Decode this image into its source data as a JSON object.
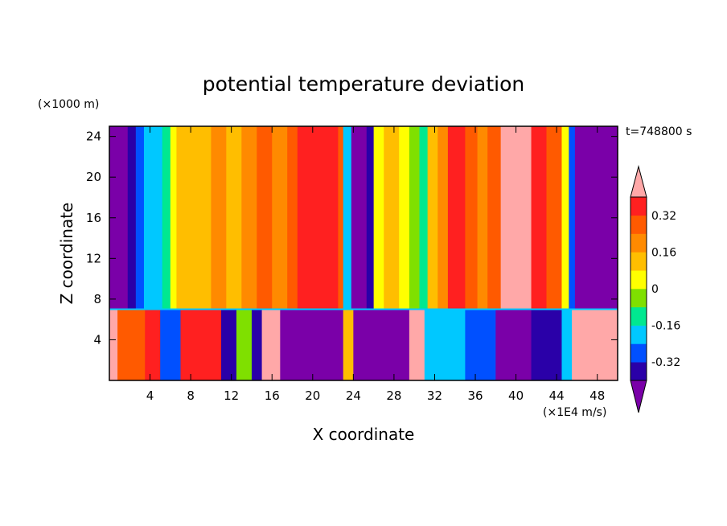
{
  "chart_data": {
    "type": "heatmap",
    "title": "potential temperature deviation",
    "xlabel": "X coordinate",
    "ylabel": "Z coordinate",
    "x_units": "(×1E4 m/s)",
    "y_units": "(×1000 m)",
    "time_label": "t=748800 s",
    "xlim": [
      0,
      50
    ],
    "ylim": [
      0,
      25
    ],
    "x_ticks": [
      4,
      8,
      12,
      16,
      20,
      24,
      28,
      32,
      36,
      40,
      44,
      48
    ],
    "y_ticks": [
      4,
      8,
      12,
      16,
      20,
      24
    ],
    "boundary_z": 7,
    "colorbar": {
      "levels": [
        -0.4,
        -0.32,
        -0.24,
        -0.16,
        -0.08,
        0,
        0.08,
        0.16,
        0.24,
        0.32,
        0.4
      ],
      "colors": [
        "#7a00a8",
        "#2a00a8",
        "#0050ff",
        "#00c8ff",
        "#00e890",
        "#7fe000",
        "#ffff00",
        "#ffbe00",
        "#ff8a00",
        "#ff5a00",
        "#ff2020",
        "#ffa8a8"
      ],
      "labels": [
        "-0.32",
        "-0.16",
        "0",
        "0.16",
        "0.32"
      ],
      "label_values": [
        -0.32,
        -0.16,
        0,
        0.16,
        0.32
      ],
      "extend": "both"
    },
    "upper_columns": [
      {
        "x0": 0.0,
        "x1": 1.8,
        "level": 0
      },
      {
        "x0": 1.8,
        "x1": 2.6,
        "level": 1
      },
      {
        "x0": 2.6,
        "x1": 3.4,
        "level": 2
      },
      {
        "x0": 3.4,
        "x1": 5.2,
        "level": 3
      },
      {
        "x0": 5.2,
        "x1": 6.0,
        "level": 4
      },
      {
        "x0": 6.0,
        "x1": 6.6,
        "level": 6
      },
      {
        "x0": 6.6,
        "x1": 8.0,
        "level": 7
      },
      {
        "x0": 8.0,
        "x1": 10.0,
        "level": 7
      },
      {
        "x0": 10.0,
        "x1": 11.5,
        "level": 8
      },
      {
        "x0": 11.5,
        "x1": 13.0,
        "level": 7
      },
      {
        "x0": 13.0,
        "x1": 14.5,
        "level": 8
      },
      {
        "x0": 14.5,
        "x1": 16.0,
        "level": 9
      },
      {
        "x0": 16.0,
        "x1": 17.5,
        "level": 8
      },
      {
        "x0": 17.5,
        "x1": 18.5,
        "level": 9
      },
      {
        "x0": 18.5,
        "x1": 22.5,
        "level": 10
      },
      {
        "x0": 22.5,
        "x1": 23.0,
        "level": 9
      },
      {
        "x0": 23.0,
        "x1": 23.8,
        "level": 3
      },
      {
        "x0": 23.8,
        "x1": 25.3,
        "level": 0
      },
      {
        "x0": 25.3,
        "x1": 26.0,
        "level": 1
      },
      {
        "x0": 26.0,
        "x1": 27.0,
        "level": 6
      },
      {
        "x0": 27.0,
        "x1": 28.5,
        "level": 7
      },
      {
        "x0": 28.5,
        "x1": 29.5,
        "level": 6
      },
      {
        "x0": 29.5,
        "x1": 30.5,
        "level": 5
      },
      {
        "x0": 30.5,
        "x1": 31.3,
        "level": 4
      },
      {
        "x0": 31.3,
        "x1": 32.3,
        "level": 7
      },
      {
        "x0": 32.3,
        "x1": 33.3,
        "level": 8
      },
      {
        "x0": 33.3,
        "x1": 35.0,
        "level": 10
      },
      {
        "x0": 35.0,
        "x1": 36.2,
        "level": 9
      },
      {
        "x0": 36.2,
        "x1": 37.2,
        "level": 8
      },
      {
        "x0": 37.2,
        "x1": 38.5,
        "level": 9
      },
      {
        "x0": 38.5,
        "x1": 41.5,
        "level": 11
      },
      {
        "x0": 41.5,
        "x1": 43.0,
        "level": 10
      },
      {
        "x0": 43.0,
        "x1": 44.5,
        "level": 9
      },
      {
        "x0": 44.5,
        "x1": 45.2,
        "level": 6
      },
      {
        "x0": 45.2,
        "x1": 45.8,
        "level": 2
      },
      {
        "x0": 45.8,
        "x1": 50.0,
        "level": 0
      }
    ],
    "lower_regions": [
      {
        "x0": 0.0,
        "x1": 0.8,
        "level": 11
      },
      {
        "x0": 0.8,
        "x1": 3.5,
        "level": 9
      },
      {
        "x0": 3.5,
        "x1": 5.0,
        "level": 10
      },
      {
        "x0": 5.0,
        "x1": 7.0,
        "level": 2
      },
      {
        "x0": 7.0,
        "x1": 11.0,
        "level": 10
      },
      {
        "x0": 11.0,
        "x1": 12.5,
        "level": 1
      },
      {
        "x0": 12.5,
        "x1": 14.0,
        "level": 5
      },
      {
        "x0": 14.0,
        "x1": 15.0,
        "level": 1
      },
      {
        "x0": 15.0,
        "x1": 16.8,
        "level": 11
      },
      {
        "x0": 16.8,
        "x1": 23.0,
        "level": 0
      },
      {
        "x0": 23.0,
        "x1": 24.0,
        "level": 7
      },
      {
        "x0": 24.0,
        "x1": 29.5,
        "level": 0
      },
      {
        "x0": 29.5,
        "x1": 31.0,
        "level": 11
      },
      {
        "x0": 31.0,
        "x1": 35.0,
        "level": 3
      },
      {
        "x0": 35.0,
        "x1": 38.0,
        "level": 2
      },
      {
        "x0": 38.0,
        "x1": 41.5,
        "level": 0
      },
      {
        "x0": 41.5,
        "x1": 44.5,
        "level": 1
      },
      {
        "x0": 44.5,
        "x1": 45.5,
        "level": 3
      },
      {
        "x0": 45.5,
        "x1": 50.0,
        "level": 11
      }
    ]
  }
}
